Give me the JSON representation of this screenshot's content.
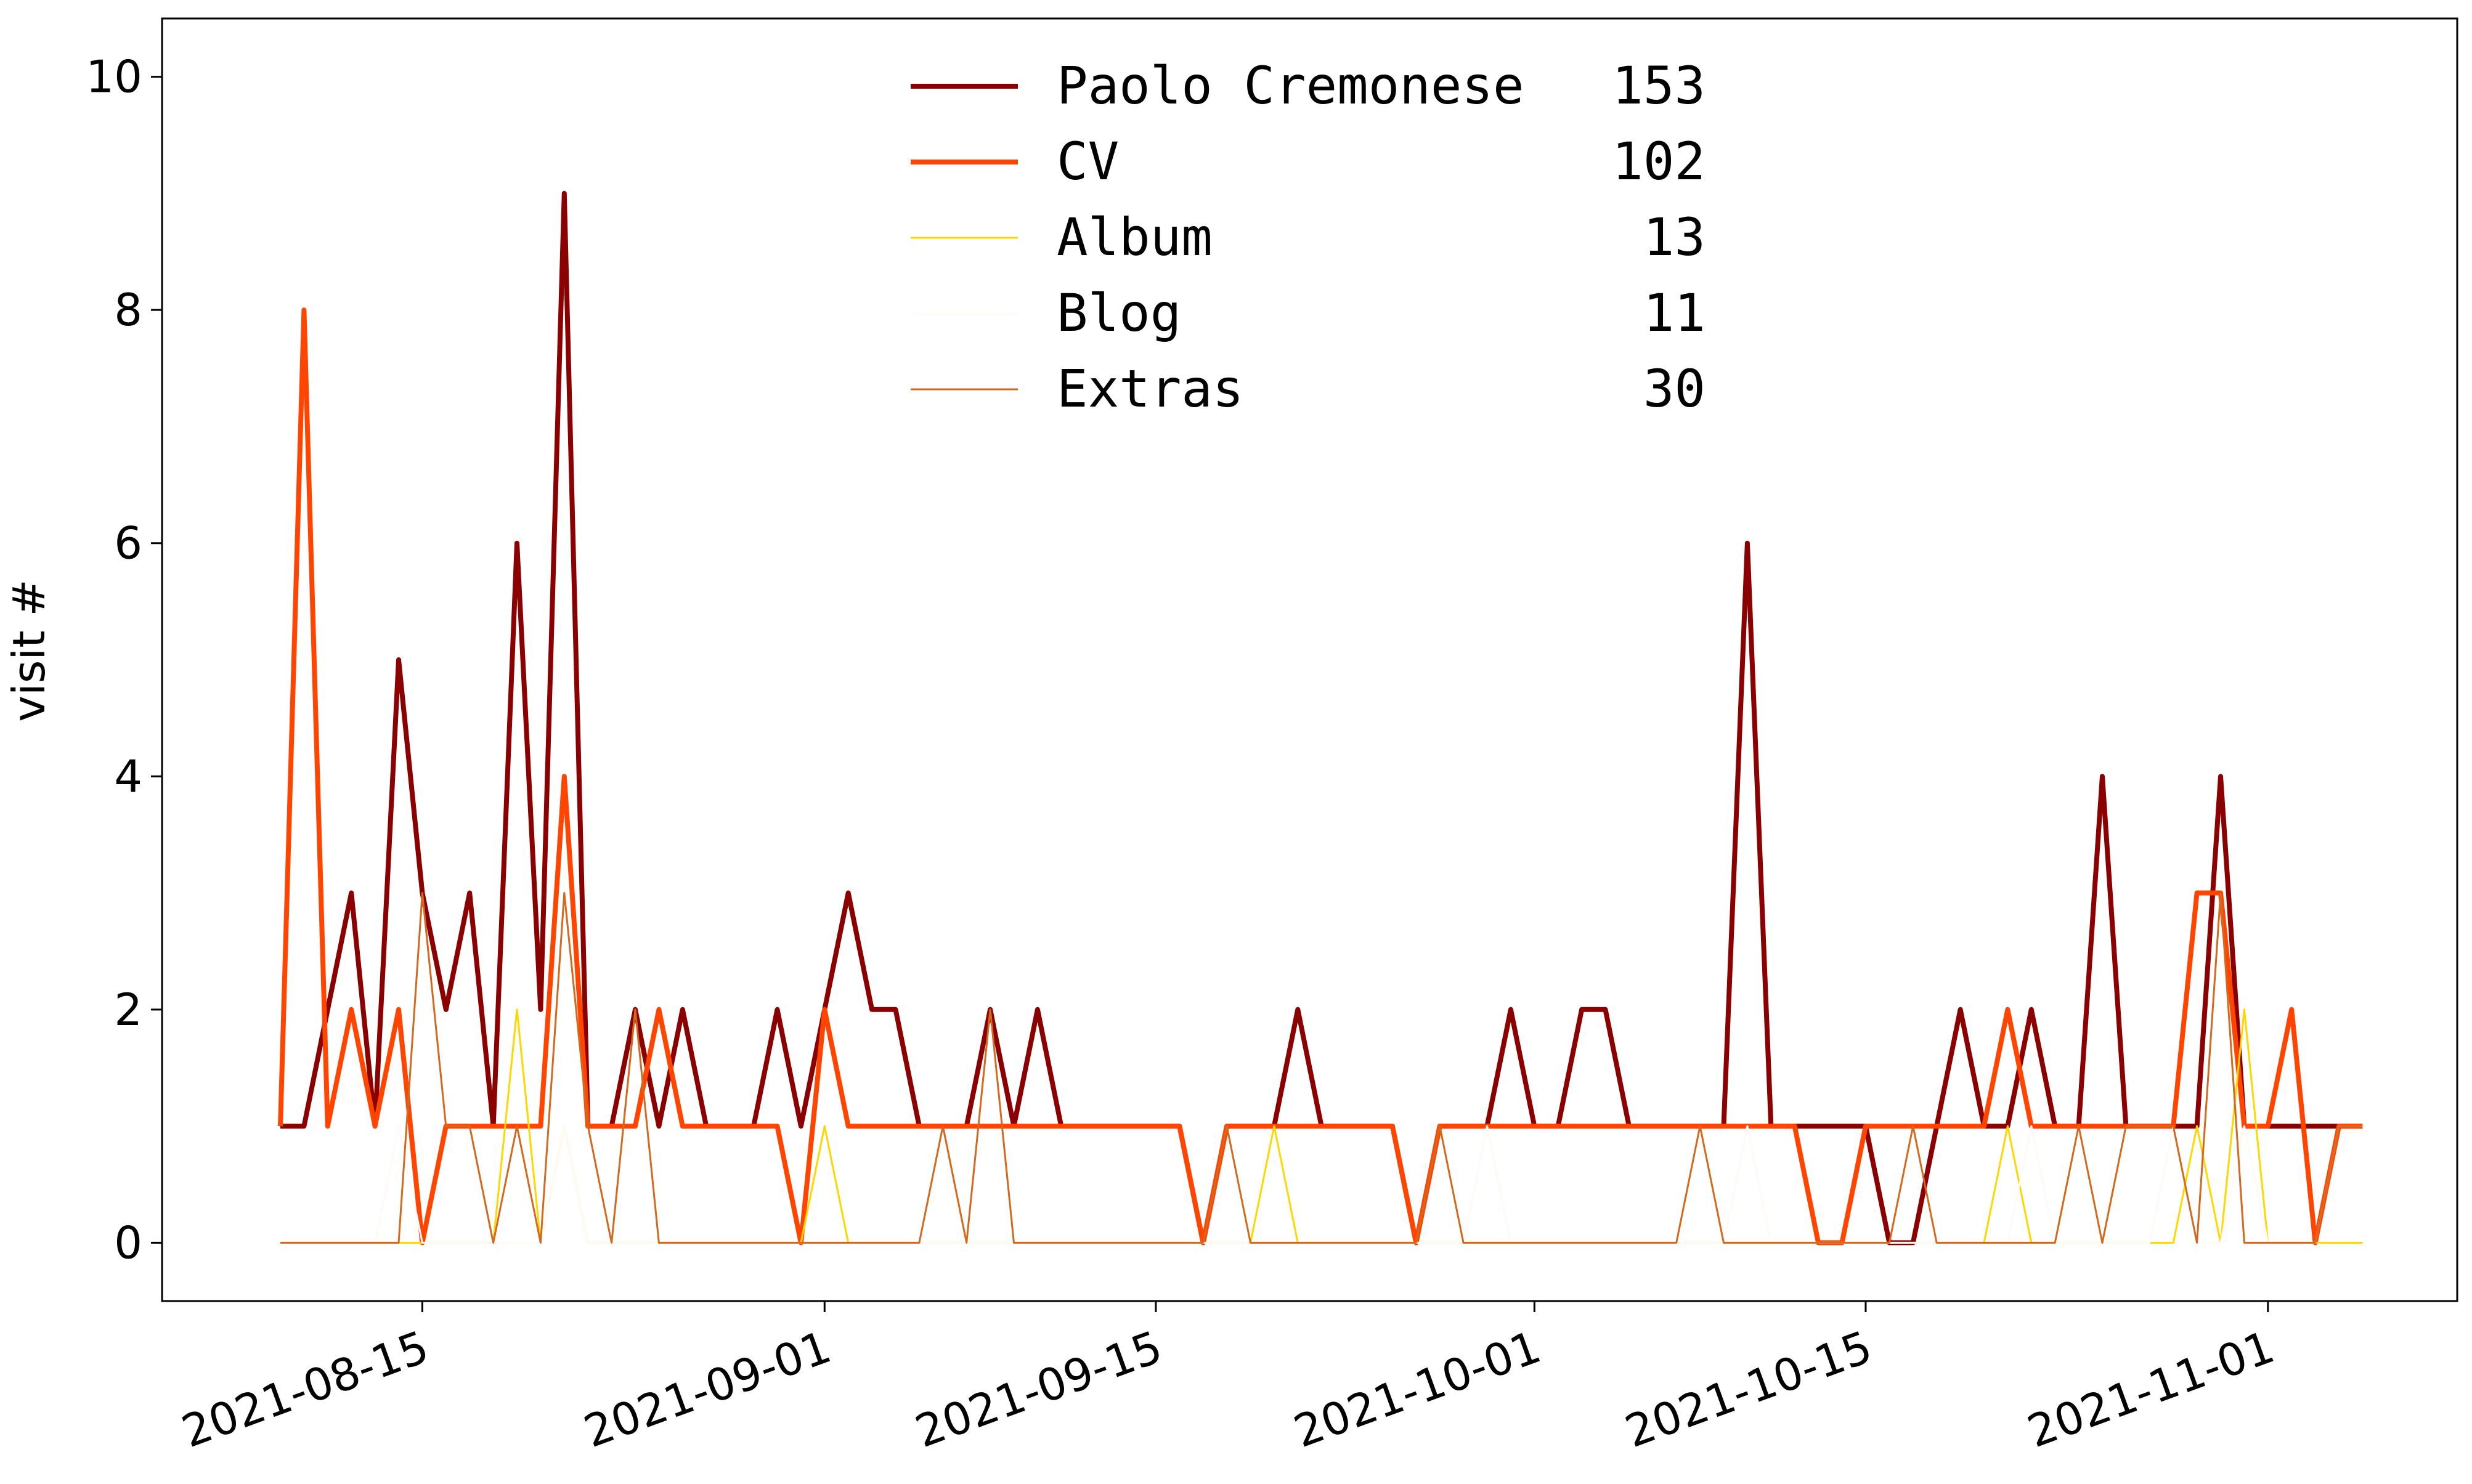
{
  "chart_data": {
    "type": "line",
    "title": "",
    "xlabel": "",
    "ylabel": "visit #",
    "ylim": [
      -0.5,
      10.5
    ],
    "xlim": [
      "2021-08-04",
      "2021-11-09"
    ],
    "grid": false,
    "legend_placement": "upper center",
    "y_ticks": [
      "0",
      "2",
      "4",
      "6",
      "8",
      "10"
    ],
    "x_ticks": [
      "2021-08-15",
      "2021-09-01",
      "2021-09-15",
      "2021-10-01",
      "2021-10-15",
      "2021-11-01"
    ],
    "x": [
      "2021-08-09",
      "2021-08-10",
      "2021-08-11",
      "2021-08-12",
      "2021-08-13",
      "2021-08-14",
      "2021-08-15",
      "2021-08-16",
      "2021-08-17",
      "2021-08-18",
      "2021-08-19",
      "2021-08-20",
      "2021-08-21",
      "2021-08-22",
      "2021-08-23",
      "2021-08-24",
      "2021-08-25",
      "2021-08-26",
      "2021-08-27",
      "2021-08-28",
      "2021-08-29",
      "2021-08-30",
      "2021-08-31",
      "2021-09-01",
      "2021-09-02",
      "2021-09-03",
      "2021-09-04",
      "2021-09-05",
      "2021-09-06",
      "2021-09-07",
      "2021-09-08",
      "2021-09-09",
      "2021-09-10",
      "2021-09-11",
      "2021-09-12",
      "2021-09-13",
      "2021-09-14",
      "2021-09-15",
      "2021-09-16",
      "2021-09-17",
      "2021-09-18",
      "2021-09-19",
      "2021-09-20",
      "2021-09-21",
      "2021-09-22",
      "2021-09-23",
      "2021-09-24",
      "2021-09-25",
      "2021-09-26",
      "2021-09-27",
      "2021-09-28",
      "2021-09-29",
      "2021-09-30",
      "2021-10-01",
      "2021-10-02",
      "2021-10-03",
      "2021-10-04",
      "2021-10-05",
      "2021-10-06",
      "2021-10-07",
      "2021-10-08",
      "2021-10-09",
      "2021-10-10",
      "2021-10-11",
      "2021-10-12",
      "2021-10-13",
      "2021-10-14",
      "2021-10-15",
      "2021-10-16",
      "2021-10-17",
      "2021-10-18",
      "2021-10-19",
      "2021-10-20",
      "2021-10-21",
      "2021-10-22",
      "2021-10-23",
      "2021-10-24",
      "2021-10-25",
      "2021-10-26",
      "2021-10-27",
      "2021-10-28",
      "2021-10-29",
      "2021-10-30",
      "2021-10-31",
      "2021-11-01",
      "2021-11-02",
      "2021-11-03",
      "2021-11-04",
      "2021-11-05"
    ],
    "series": [
      {
        "name": "Paolo Cremonese",
        "total": "153",
        "color": "#8b0000",
        "width": 8,
        "values": [
          1,
          1,
          2,
          3,
          1,
          5,
          3,
          2,
          3,
          1,
          6,
          2,
          9,
          1,
          1,
          2,
          1,
          2,
          1,
          1,
          1,
          2,
          1,
          2,
          3,
          2,
          2,
          1,
          1,
          1,
          2,
          1,
          2,
          1,
          1,
          1,
          1,
          1,
          1,
          0,
          1,
          1,
          1,
          2,
          1,
          1,
          1,
          1,
          0,
          1,
          1,
          1,
          2,
          1,
          1,
          2,
          2,
          1,
          1,
          1,
          1,
          1,
          6,
          1,
          1,
          1,
          1,
          1,
          0,
          0,
          1,
          2,
          1,
          1,
          2,
          1,
          1,
          4,
          1,
          1,
          1,
          1,
          4,
          1,
          1,
          1,
          1,
          1,
          1
        ]
      },
      {
        "name": "CV",
        "total": "102",
        "color": "#ff4500",
        "width": 8,
        "values": [
          1,
          8,
          1,
          2,
          1,
          2,
          0,
          1,
          1,
          1,
          1,
          1,
          4,
          1,
          1,
          1,
          2,
          1,
          1,
          1,
          1,
          1,
          0,
          2,
          1,
          1,
          1,
          1,
          1,
          1,
          1,
          1,
          1,
          1,
          1,
          1,
          1,
          1,
          1,
          0,
          1,
          1,
          1,
          1,
          1,
          1,
          1,
          1,
          0,
          1,
          1,
          1,
          1,
          1,
          1,
          1,
          1,
          1,
          1,
          1,
          1,
          1,
          1,
          1,
          1,
          0,
          0,
          1,
          1,
          1,
          1,
          1,
          1,
          2,
          1,
          1,
          1,
          1,
          1,
          1,
          1,
          3,
          3,
          1,
          1,
          2,
          0,
          1,
          1
        ]
      },
      {
        "name": "Album",
        "total": "13",
        "color": "#ffd700",
        "width": 3,
        "values": [
          0,
          0,
          0,
          0,
          0,
          0,
          0,
          0,
          0,
          0,
          2,
          0,
          1,
          0,
          0,
          0,
          0,
          0,
          0,
          0,
          0,
          0,
          0,
          1,
          0,
          0,
          0,
          0,
          0,
          0,
          0,
          0,
          0,
          0,
          0,
          0,
          0,
          0,
          0,
          0,
          0,
          0,
          1,
          0,
          0,
          0,
          0,
          0,
          0,
          0,
          0,
          0,
          0,
          0,
          0,
          0,
          0,
          0,
          0,
          0,
          0,
          0,
          0,
          0,
          0,
          0,
          0,
          0,
          0,
          0,
          0,
          0,
          0,
          1,
          0,
          0,
          0,
          0,
          0,
          0,
          0,
          1,
          0,
          2,
          0,
          0,
          0,
          0,
          0
        ]
      },
      {
        "name": "Blog",
        "total": "11",
        "color": "#fffaf5",
        "width": 3,
        "values": [
          0,
          0,
          0,
          0,
          0,
          1,
          0,
          0,
          0,
          0,
          0,
          0,
          1,
          0,
          0,
          0,
          0,
          0,
          0,
          0,
          0,
          0,
          0,
          0,
          0,
          0,
          0,
          0,
          0,
          0,
          0,
          0,
          0,
          0,
          0,
          0,
          0,
          0,
          0,
          0,
          0,
          0,
          0,
          0,
          0,
          0,
          0,
          0,
          0,
          0,
          0,
          1,
          0,
          0,
          0,
          0,
          0,
          0,
          0,
          0,
          0,
          0,
          1,
          0,
          0,
          0,
          0,
          0,
          0,
          0,
          0,
          0,
          0,
          0,
          1,
          0,
          0,
          0,
          0,
          0,
          1,
          0,
          0,
          1,
          0,
          0,
          0,
          1,
          1
        ]
      },
      {
        "name": "Extras",
        "total": "30",
        "color": "#d2691e",
        "width": 3,
        "values": [
          0,
          0,
          0,
          0,
          0,
          0,
          3,
          1,
          1,
          0,
          1,
          0,
          3,
          1,
          0,
          2,
          0,
          0,
          0,
          0,
          0,
          0,
          0,
          0,
          0,
          0,
          0,
          0,
          1,
          0,
          2,
          0,
          0,
          0,
          0,
          0,
          0,
          0,
          0,
          0,
          1,
          0,
          0,
          0,
          0,
          0,
          0,
          0,
          0,
          1,
          0,
          0,
          0,
          0,
          0,
          0,
          0,
          0,
          0,
          0,
          1,
          0,
          0,
          0,
          0,
          0,
          0,
          0,
          0,
          1,
          0,
          0,
          0,
          0,
          0,
          0,
          1,
          0,
          1,
          1,
          1,
          0,
          3,
          0,
          0,
          0,
          0,
          1,
          1
        ]
      }
    ]
  }
}
